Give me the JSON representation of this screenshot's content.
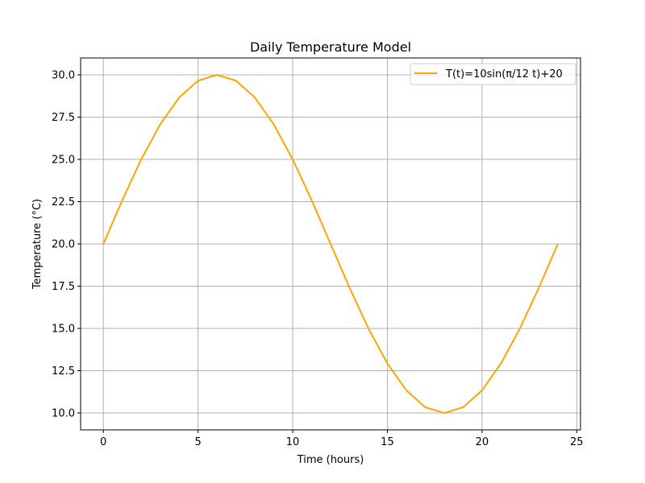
{
  "chart_data": {
    "type": "line",
    "title": "Daily Temperature Model",
    "xlabel": "Time (hours)",
    "ylabel": "Temperature (°C)",
    "xlim": [
      -1.2,
      25.2
    ],
    "ylim": [
      9.0,
      31.0
    ],
    "xticks": [
      0,
      5,
      10,
      15,
      20,
      25
    ],
    "xtick_labels": [
      "0",
      "5",
      "10",
      "15",
      "20",
      "25"
    ],
    "yticks": [
      10.0,
      12.5,
      15.0,
      17.5,
      20.0,
      22.5,
      25.0,
      27.5,
      30.0
    ],
    "ytick_labels": [
      "10.0",
      "12.5",
      "15.0",
      "17.5",
      "20.0",
      "22.5",
      "25.0",
      "27.5",
      "30.0"
    ],
    "grid": true,
    "legend_position": "top-right",
    "series": [
      {
        "name": "T(t)=10sin(π/12 t)+20",
        "color": "#ffa500",
        "x": [
          0,
          1,
          2,
          3,
          4,
          5,
          6,
          7,
          8,
          9,
          10,
          11,
          12,
          13,
          14,
          15,
          16,
          17,
          18,
          19,
          20,
          21,
          22,
          23,
          24
        ],
        "y": [
          20.0,
          22.59,
          25.0,
          27.07,
          28.66,
          29.66,
          30.0,
          29.66,
          28.66,
          27.07,
          25.0,
          22.59,
          20.0,
          17.41,
          15.0,
          12.93,
          11.34,
          10.34,
          10.0,
          10.34,
          11.34,
          12.93,
          15.0,
          17.41,
          20.0
        ]
      }
    ]
  }
}
